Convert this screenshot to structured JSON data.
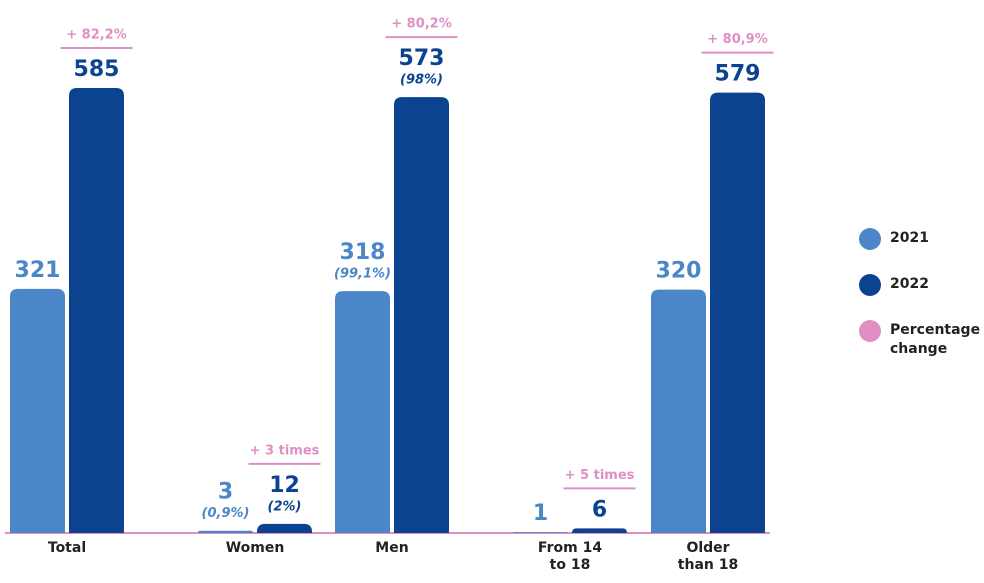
{
  "chart_data": {
    "type": "bar",
    "categories": [
      "Total",
      "Women",
      "Men",
      "From 14 to 18",
      "Older than 18"
    ],
    "series": [
      {
        "name": "2021",
        "color": "#4a86c8",
        "values": [
          321,
          3,
          318,
          1,
          320
        ],
        "share_labels": [
          null,
          "(0,9%)",
          "(99,1%)",
          null,
          null
        ]
      },
      {
        "name": "2022",
        "color": "#0b4390",
        "values": [
          585,
          12,
          573,
          6,
          579
        ],
        "share_labels": [
          null,
          "(2%)",
          "(98%)",
          null,
          null
        ]
      }
    ],
    "change_name": "Percentage change",
    "change_color": "#e08fc4",
    "change_labels": [
      "+ 82,2%",
      "+ 3 times",
      "+ 80,2%",
      "+ 5 times",
      "+ 80,9%"
    ]
  }
}
